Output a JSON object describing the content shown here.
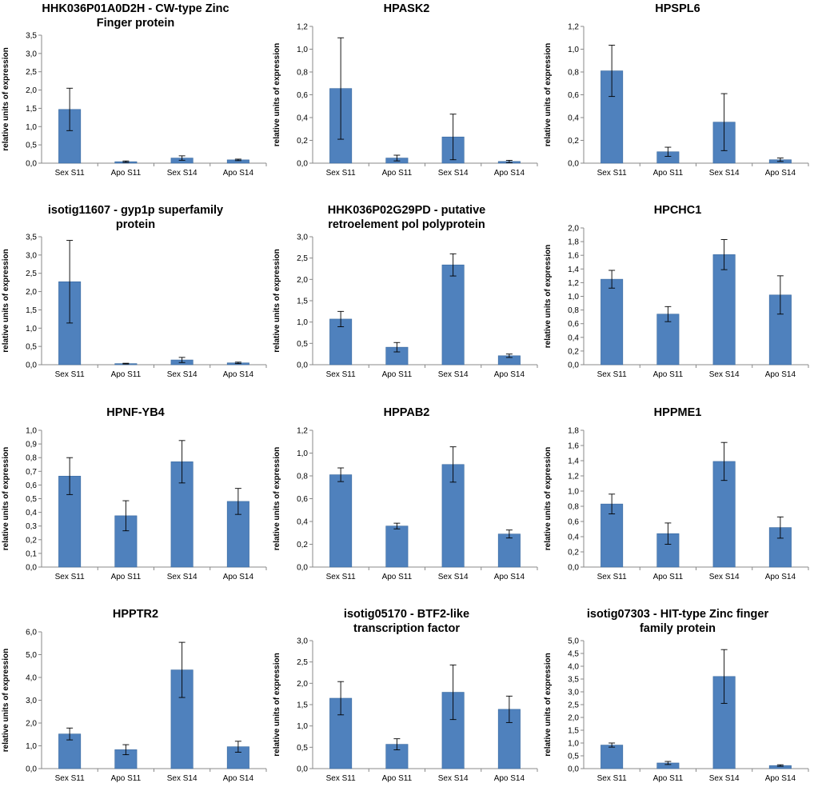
{
  "chart_data": [
    {
      "type": "bar",
      "title": "HHK036P01A0D2H  - CW-type Zinc\nFinger protein",
      "ylabel": "relative units of expression",
      "categories": [
        "Sex S11",
        "Apo S11",
        "Sex S14",
        "Apo S14"
      ],
      "values": [
        1.47,
        0.04,
        0.14,
        0.09
      ],
      "errors": [
        0.58,
        0.02,
        0.06,
        0.02
      ],
      "ylim": [
        0,
        3.5
      ],
      "yticks": [
        "0,0",
        "0,5",
        "1,0",
        "1,5",
        "2,0",
        "2,5",
        "3,0",
        "3,5"
      ]
    },
    {
      "type": "bar",
      "title": "HPASK2",
      "ylabel": "relative units of expression",
      "categories": [
        "Sex S11",
        "Apo S11",
        "Sex S14",
        "Apo S14"
      ],
      "values": [
        0.655,
        0.045,
        0.23,
        0.015
      ],
      "errors": [
        0.445,
        0.025,
        0.2,
        0.01
      ],
      "ylim": [
        0,
        1.2
      ],
      "yticks": [
        "0,0",
        "0,2",
        "0,4",
        "0,6",
        "0,8",
        "1,0",
        "1,2"
      ]
    },
    {
      "type": "bar",
      "title": "HPSPL6",
      "ylabel": "relative units of expression",
      "categories": [
        "Sex S11",
        "Apo S11",
        "Sex S14",
        "Apo S14"
      ],
      "values": [
        0.81,
        0.1,
        0.36,
        0.03
      ],
      "errors": [
        0.225,
        0.04,
        0.25,
        0.015
      ],
      "ylim": [
        0,
        1.2
      ],
      "yticks": [
        "0,0",
        "0,2",
        "0,4",
        "0,6",
        "0,8",
        "1,0",
        "1,2"
      ]
    },
    {
      "type": "bar",
      "title": "isotig11607 - gyp1p superfamily\nprotein",
      "ylabel": "relative units of expression",
      "categories": [
        "Sex S11",
        "Apo S11",
        "Sex S14",
        "Apo S14"
      ],
      "values": [
        2.27,
        0.03,
        0.13,
        0.05
      ],
      "errors": [
        1.13,
        0.01,
        0.07,
        0.02
      ],
      "ylim": [
        0,
        3.5
      ],
      "yticks": [
        "0,0",
        "0,5",
        "1,0",
        "1,5",
        "2,0",
        "2,5",
        "3,0",
        "3,5"
      ]
    },
    {
      "type": "bar",
      "title": "HHK036P02G29PD - putative\nretroelement pol polyprotein",
      "ylabel": "relative units of expression",
      "categories": [
        "Sex S11",
        "Apo S11",
        "Sex S14",
        "Apo S14"
      ],
      "values": [
        1.07,
        0.41,
        2.34,
        0.21
      ],
      "errors": [
        0.18,
        0.11,
        0.26,
        0.04
      ],
      "ylim": [
        0,
        3.0
      ],
      "yticks": [
        "0,0",
        "0,5",
        "1,0",
        "1,5",
        "2,0",
        "2,5",
        "3,0"
      ]
    },
    {
      "type": "bar",
      "title": "HPCHC1",
      "ylabel": "relative units of expression",
      "categories": [
        "Sex S11",
        "Apo S11",
        "Sex S14",
        "Apo S14"
      ],
      "values": [
        1.25,
        0.74,
        1.61,
        1.02
      ],
      "errors": [
        0.13,
        0.11,
        0.22,
        0.28
      ],
      "ylim": [
        0,
        2.0
      ],
      "yticks": [
        "0,0",
        "0,2",
        "0,4",
        "0,6",
        "0,8",
        "1,0",
        "1,2",
        "1,4",
        "1,6",
        "1,8",
        "2,0"
      ]
    },
    {
      "type": "bar",
      "title": "HPNF-YB4",
      "ylabel": "relative units of expression",
      "categories": [
        "Sex S11",
        "Apo S11",
        "Sex S14",
        "Apo S14"
      ],
      "values": [
        0.665,
        0.375,
        0.77,
        0.48
      ],
      "errors": [
        0.135,
        0.11,
        0.155,
        0.095
      ],
      "ylim": [
        0,
        1.0
      ],
      "yticks": [
        "0,0",
        "0,1",
        "0,2",
        "0,3",
        "0,4",
        "0,5",
        "0,6",
        "0,7",
        "0,8",
        "0,9",
        "1,0"
      ]
    },
    {
      "type": "bar",
      "title": "HPPAB2",
      "ylabel": "relative units of expression",
      "categories": [
        "Sex S11",
        "Apo S11",
        "Sex S14",
        "Apo S14"
      ],
      "values": [
        0.81,
        0.36,
        0.9,
        0.29
      ],
      "errors": [
        0.06,
        0.025,
        0.155,
        0.035
      ],
      "ylim": [
        0,
        1.2
      ],
      "yticks": [
        "0,0",
        "0,2",
        "0,4",
        "0,6",
        "0,8",
        "1,0",
        "1,2"
      ]
    },
    {
      "type": "bar",
      "title": "HPPME1",
      "ylabel": "relative units of expression",
      "categories": [
        "Sex S11",
        "Apo S11",
        "Sex S14",
        "Apo S14"
      ],
      "values": [
        0.83,
        0.44,
        1.39,
        0.52
      ],
      "errors": [
        0.13,
        0.14,
        0.25,
        0.14
      ],
      "ylim": [
        0,
        1.8
      ],
      "yticks": [
        "0,0",
        "0,2",
        "0,4",
        "0,6",
        "0,8",
        "1,0",
        "1,2",
        "1,4",
        "1,6",
        "1,8"
      ]
    },
    {
      "type": "bar",
      "title": "HPPTR2",
      "ylabel": "relative units of expression",
      "categories": [
        "Sex S11",
        "Apo S11",
        "Sex S14",
        "Apo S14"
      ],
      "values": [
        1.52,
        0.83,
        4.33,
        0.96
      ],
      "errors": [
        0.26,
        0.22,
        1.21,
        0.24
      ],
      "ylim": [
        0,
        6.0
      ],
      "yticks": [
        "0,0",
        "1,0",
        "2,0",
        "3,0",
        "4,0",
        "5,0",
        "6,0"
      ]
    },
    {
      "type": "bar",
      "title": "isotig05170 - BTF2-like\ntranscription factor",
      "ylabel": "relative units of expression",
      "categories": [
        "Sex S11",
        "Apo S11",
        "Sex S14",
        "Apo S14"
      ],
      "values": [
        1.65,
        0.57,
        1.79,
        1.39
      ],
      "errors": [
        0.39,
        0.13,
        0.64,
        0.31
      ],
      "ylim": [
        0,
        3.0
      ],
      "yticks": [
        "0,0",
        "0,5",
        "1,0",
        "1,5",
        "2,0",
        "2,5",
        "3,0"
      ]
    },
    {
      "type": "bar",
      "title": "isotig07303 - HIT-type Zinc finger\nfamily protein",
      "ylabel": "relative units of expression",
      "categories": [
        "Sex S11",
        "Apo S11",
        "Sex S14",
        "Apo S14"
      ],
      "values": [
        0.92,
        0.22,
        3.6,
        0.12
      ],
      "errors": [
        0.08,
        0.06,
        1.05,
        0.03
      ],
      "ylim": [
        0,
        5.0
      ],
      "yticks": [
        "0,0",
        "0,5",
        "1,0",
        "1,5",
        "2,0",
        "2,5",
        "3,0",
        "3,5",
        "4,0",
        "4,5",
        "5,0"
      ]
    }
  ]
}
